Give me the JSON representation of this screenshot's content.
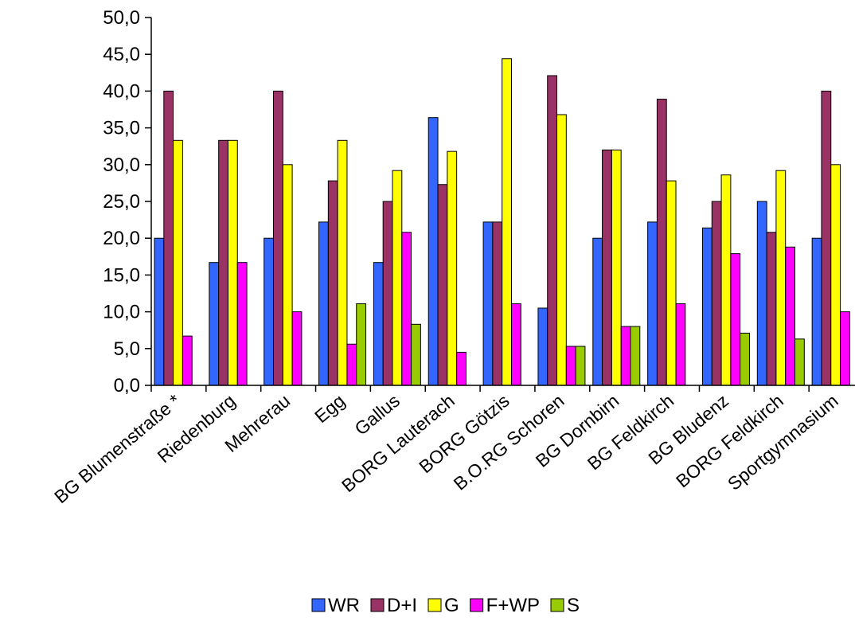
{
  "chart_data": {
    "type": "bar",
    "categories": [
      "BG Blumenstraße *",
      "Riedenburg",
      "Mehrerau",
      "Egg",
      "Gallus",
      "BORG Lauterach",
      "BORG Götzis",
      "B.O.RG Schoren",
      "BG Dornbirn",
      "BG Feldkirch",
      "BG Bludenz",
      "BORG Feldkirch",
      "Sportgymnasium"
    ],
    "series": [
      {
        "name": "WR",
        "color": "#3366ff",
        "values": [
          20.0,
          16.7,
          20.0,
          22.2,
          16.7,
          36.4,
          22.2,
          10.5,
          20.0,
          22.2,
          21.4,
          25.0,
          20.0
        ]
      },
      {
        "name": "D+I",
        "color": "#993366",
        "values": [
          40.0,
          33.3,
          40.0,
          27.8,
          25.0,
          27.3,
          22.2,
          42.1,
          32.0,
          38.9,
          25.0,
          20.8,
          40.0
        ]
      },
      {
        "name": "G",
        "color": "#ffff00",
        "values": [
          33.3,
          33.3,
          30.0,
          33.3,
          29.2,
          31.8,
          44.4,
          36.8,
          32.0,
          27.8,
          28.6,
          29.2,
          30.0
        ]
      },
      {
        "name": "F+WP",
        "color": "#ff00ff",
        "values": [
          6.7,
          16.7,
          10.0,
          5.6,
          20.8,
          4.5,
          11.1,
          5.3,
          8.0,
          11.1,
          17.9,
          18.8,
          10.0
        ]
      },
      {
        "name": "S",
        "color": "#99cc00",
        "values": [
          0,
          0,
          0,
          11.1,
          8.3,
          0,
          0,
          5.3,
          8.0,
          0,
          7.1,
          6.3,
          0
        ]
      }
    ],
    "y_ticks": [
      "0,0",
      "5,0",
      "10,0",
      "15,0",
      "20,0",
      "25,0",
      "30,0",
      "35,0",
      "40,0",
      "45,0",
      "50,0"
    ],
    "ylim": [
      0,
      50
    ],
    "legend_position": "bottom",
    "grid": false
  }
}
